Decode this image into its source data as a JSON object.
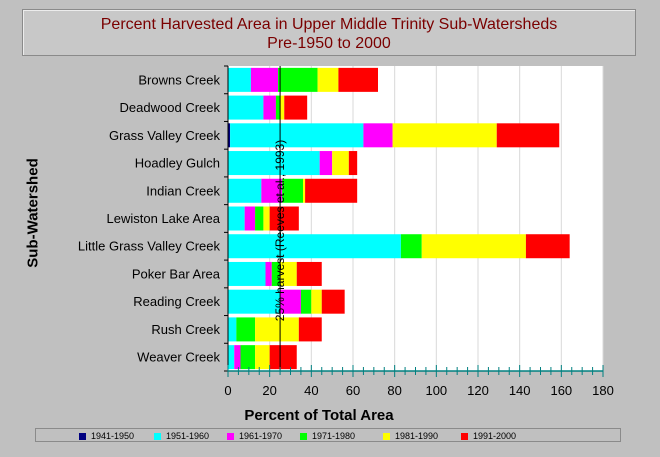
{
  "chart_data": {
    "type": "bar",
    "orientation": "horizontal",
    "stacked": true,
    "title": "Percent Harvested Area in Upper Middle Trinity Sub-Watersheds",
    "subtitle": "Pre-1950 to 2000",
    "xlabel": "Percent of Total Area",
    "ylabel": "Sub-Watershed",
    "xlim": [
      0,
      180
    ],
    "xticks": [
      0,
      20,
      40,
      60,
      80,
      100,
      120,
      140,
      160,
      180
    ],
    "grid": true,
    "legend_position": "bottom",
    "categories": [
      "Browns Creek",
      "Deadwood Creek",
      "Grass Valley Creek",
      "Hoadley Gulch",
      "Indian Creek",
      "Lewiston Lake Area",
      "Little Grass Valley Creek",
      "Poker Bar Area",
      "Reading Creek",
      "Rush Creek",
      "Weaver Creek"
    ],
    "series": [
      {
        "name": "1941-1950",
        "color": "#000080",
        "values": [
          0,
          0,
          1,
          0,
          0,
          0,
          0,
          0,
          0,
          0,
          0
        ]
      },
      {
        "name": "1951-1960",
        "color": "#00ffff",
        "values": [
          11,
          17,
          64,
          44,
          16,
          8,
          83,
          18,
          25,
          4,
          3
        ]
      },
      {
        "name": "1961-1970",
        "color": "#ff00ff",
        "values": [
          13,
          6,
          14,
          6,
          10,
          5,
          0,
          3,
          10,
          0,
          3
        ]
      },
      {
        "name": "1971-1980",
        "color": "#00ff00",
        "values": [
          19,
          2,
          0,
          0,
          10,
          4,
          10,
          4,
          5,
          9,
          7
        ]
      },
      {
        "name": "1981-1990",
        "color": "#ffff00",
        "values": [
          10,
          2,
          50,
          8,
          1,
          3,
          50,
          8,
          5,
          21,
          7
        ]
      },
      {
        "name": "1991-2000",
        "color": "#ff0000",
        "values": [
          19,
          11,
          30,
          4,
          25,
          14,
          21,
          12,
          11,
          11,
          13
        ]
      }
    ],
    "annotation": {
      "text": "25% harvest (Reeves et al., 1993)",
      "x": 25
    }
  }
}
